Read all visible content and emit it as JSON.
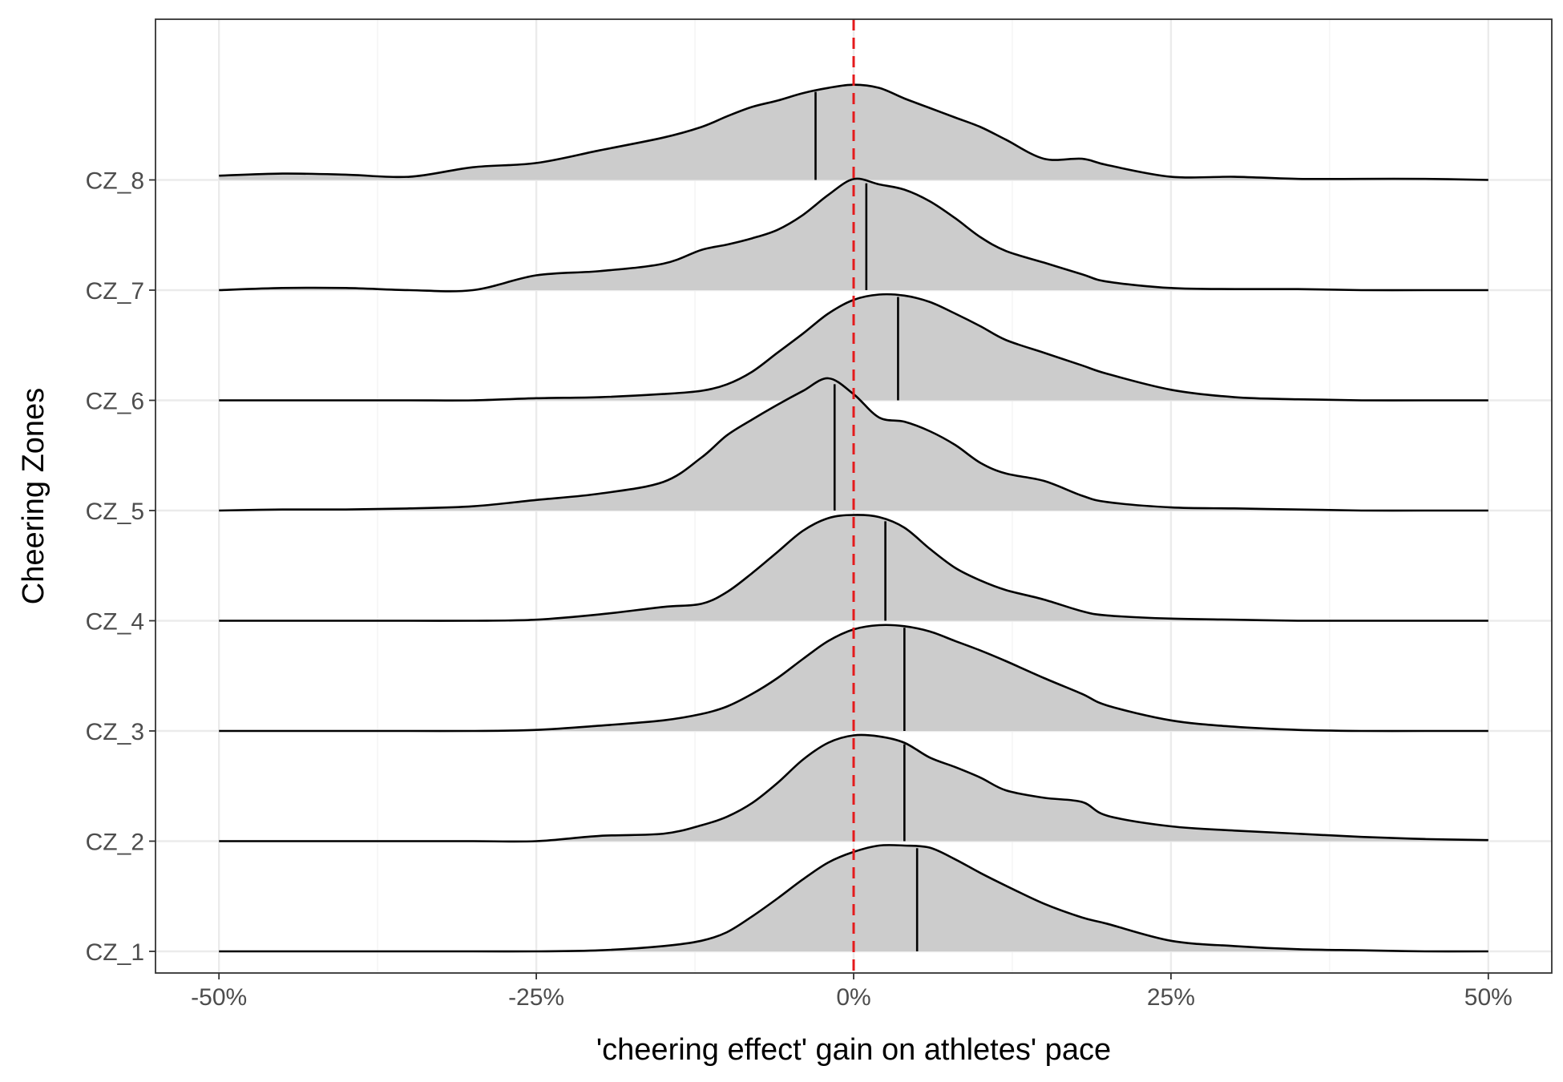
{
  "chart_data": {
    "type": "ridgeline",
    "xlabel": "'cheering effect' gain on athletes' pace",
    "ylabel": "Cheering Zones",
    "xlim": [
      -0.55,
      0.55
    ],
    "x_ticks": [
      -0.5,
      -0.25,
      0,
      0.25,
      0.5
    ],
    "x_tick_labels": [
      "-50%",
      "-25%",
      "0%",
      "25%",
      "50%"
    ],
    "grid": true,
    "reference_line": {
      "x": 0,
      "style": "dashed",
      "color": "#e41a1c"
    },
    "fill_color": "#cccccc",
    "line_color": "#000000",
    "x_grid": [
      -0.5,
      -0.45,
      -0.4,
      -0.35,
      -0.3,
      -0.25,
      -0.2,
      -0.15,
      -0.12,
      -0.1,
      -0.08,
      -0.06,
      -0.04,
      -0.02,
      0,
      0.02,
      0.04,
      0.06,
      0.08,
      0.1,
      0.12,
      0.15,
      0.18,
      0.2,
      0.25,
      0.3,
      0.35,
      0.4,
      0.45,
      0.5
    ],
    "series": [
      {
        "name": "CZ_1",
        "median": 0.05,
        "density": [
          0,
          0,
          0,
          0,
          0,
          0,
          0.01,
          0.05,
          0.1,
          0.18,
          0.33,
          0.5,
          0.68,
          0.84,
          0.94,
          1.0,
          1.0,
          0.98,
          0.87,
          0.74,
          0.62,
          0.45,
          0.32,
          0.26,
          0.1,
          0.05,
          0.02,
          0.01,
          0,
          0
        ]
      },
      {
        "name": "CZ_2",
        "median": 0.04,
        "density": [
          0,
          0,
          0,
          0,
          0,
          0,
          0.05,
          0.07,
          0.15,
          0.23,
          0.36,
          0.55,
          0.77,
          0.93,
          1.0,
          0.99,
          0.93,
          0.79,
          0.7,
          0.6,
          0.48,
          0.41,
          0.37,
          0.24,
          0.14,
          0.1,
          0.07,
          0.04,
          0.02,
          0.01
        ]
      },
      {
        "name": "CZ_3",
        "median": 0.04,
        "density": [
          0,
          0,
          0,
          0,
          0,
          0.01,
          0.05,
          0.1,
          0.16,
          0.23,
          0.35,
          0.5,
          0.68,
          0.85,
          0.96,
          1.0,
          0.99,
          0.94,
          0.85,
          0.76,
          0.66,
          0.5,
          0.35,
          0.24,
          0.1,
          0.04,
          0.01,
          0,
          0,
          0
        ]
      },
      {
        "name": "CZ_4",
        "median": 0.025,
        "density": [
          0,
          0,
          0,
          0,
          0,
          0.01,
          0.06,
          0.13,
          0.16,
          0.27,
          0.45,
          0.65,
          0.85,
          0.97,
          1.0,
          0.98,
          0.88,
          0.68,
          0.5,
          0.38,
          0.29,
          0.2,
          0.09,
          0.05,
          0.02,
          0.01,
          0,
          0,
          0,
          0
        ]
      },
      {
        "name": "CZ_5",
        "median": -0.015,
        "density": [
          0,
          0.01,
          0.01,
          0.02,
          0.04,
          0.1,
          0.16,
          0.27,
          0.5,
          0.71,
          0.86,
          1.0,
          1.13,
          1.25,
          1.1,
          0.88,
          0.84,
          0.75,
          0.62,
          0.45,
          0.35,
          0.28,
          0.14,
          0.08,
          0.03,
          0.02,
          0.01,
          0,
          0,
          0
        ]
      },
      {
        "name": "CZ_6",
        "median": 0.035,
        "density": [
          0,
          0,
          0,
          0,
          0,
          0.02,
          0.03,
          0.06,
          0.09,
          0.15,
          0.27,
          0.45,
          0.63,
          0.82,
          0.95,
          1.0,
          0.99,
          0.93,
          0.82,
          0.7,
          0.57,
          0.45,
          0.33,
          0.25,
          0.1,
          0.03,
          0.01,
          0,
          0,
          0
        ]
      },
      {
        "name": "CZ_7",
        "median": 0.01,
        "density": [
          0,
          0.02,
          0.02,
          0,
          0,
          0.14,
          0.18,
          0.25,
          0.38,
          0.43,
          0.49,
          0.57,
          0.71,
          0.9,
          1.05,
          1.0,
          0.95,
          0.84,
          0.68,
          0.5,
          0.37,
          0.26,
          0.15,
          0.08,
          0.02,
          0.01,
          0.01,
          0,
          0,
          0
        ]
      },
      {
        "name": "CZ_8",
        "median": -0.03,
        "density": [
          0.04,
          0.06,
          0.05,
          0.03,
          0.12,
          0.16,
          0.28,
          0.4,
          0.5,
          0.6,
          0.69,
          0.75,
          0.82,
          0.87,
          0.9,
          0.87,
          0.77,
          0.68,
          0.59,
          0.5,
          0.38,
          0.2,
          0.2,
          0.14,
          0.03,
          0.03,
          0.01,
          0.01,
          0.01,
          0
        ]
      }
    ]
  }
}
